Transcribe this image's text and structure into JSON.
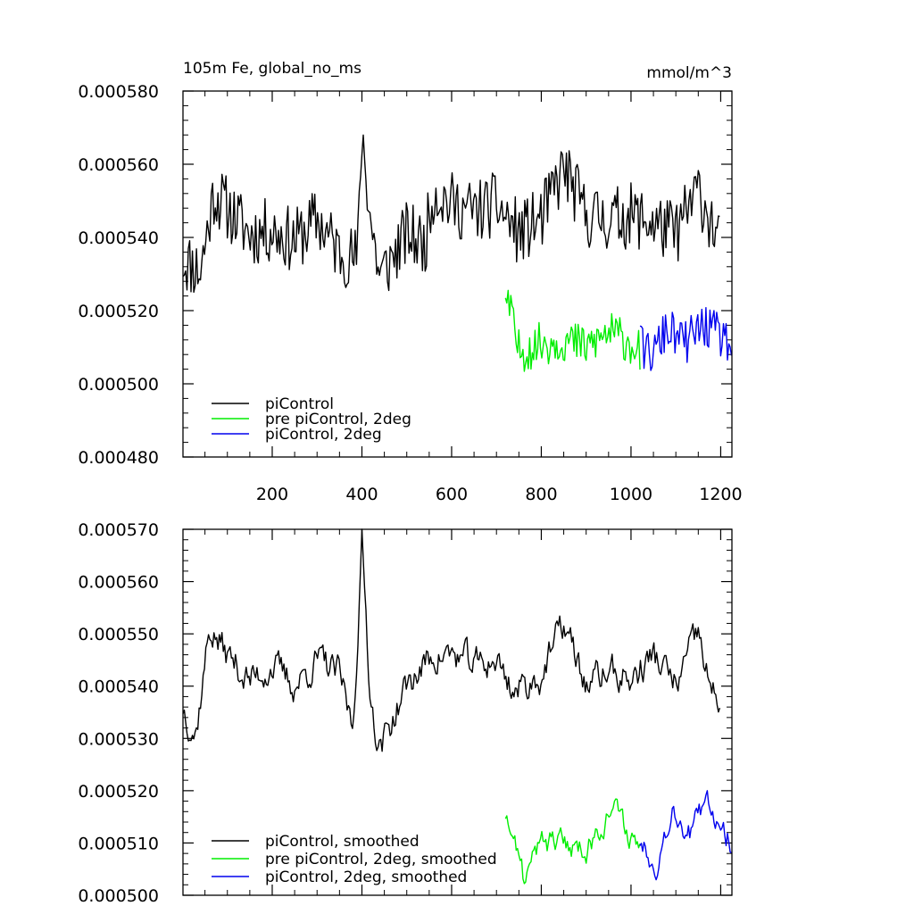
{
  "chart_data": [
    {
      "type": "line",
      "title": "105m Fe, global_no_ms",
      "units": "mmol/m^3",
      "xlabel": "",
      "ylabel": "",
      "xlim": [
        1,
        1225
      ],
      "ylim": [
        0.00048,
        0.00058
      ],
      "xticks": [
        200,
        400,
        600,
        800,
        1000,
        1200
      ],
      "xtick_labels": [
        "200",
        "400",
        "600",
        "800",
        "1000",
        "1200"
      ],
      "yticks": [
        0.00048,
        0.0005,
        0.00052,
        0.00054,
        0.00056,
        0.00058
      ],
      "ytick_labels": [
        "0.000480",
        "0.000500",
        "0.000520",
        "0.000540",
        "0.000560",
        "0.000580"
      ],
      "legend": {
        "position": "bottom-left"
      },
      "series": [
        {
          "name": "piControl",
          "color": "#000000",
          "x_range": [
            1,
            1200
          ],
          "points": [
            [
              1,
              0.000534
            ],
            [
              40,
              0.000531
            ],
            [
              70,
              0.000552
            ],
            [
              100,
              0.000548
            ],
            [
              150,
              0.000541
            ],
            [
              200,
              0.000542
            ],
            [
              250,
              0.000539
            ],
            [
              300,
              0.000545
            ],
            [
              350,
              0.000536
            ],
            [
              390,
              0.000534
            ],
            [
              400,
              0.000569
            ],
            [
              420,
              0.000544
            ],
            [
              440,
              0.000529
            ],
            [
              500,
              0.000541
            ],
            [
              540,
              0.000538
            ],
            [
              560,
              0.000553
            ],
            [
              600,
              0.000549
            ],
            [
              650,
              0.000547
            ],
            [
              700,
              0.000549
            ],
            [
              750,
              0.000541
            ],
            [
              800,
              0.000545
            ],
            [
              850,
              0.000559
            ],
            [
              900,
              0.000546
            ],
            [
              950,
              0.000545
            ],
            [
              1000,
              0.000546
            ],
            [
              1050,
              0.000544
            ],
            [
              1100,
              0.000541
            ],
            [
              1150,
              0.000553
            ],
            [
              1180,
              0.000544
            ],
            [
              1200,
              0.000537
            ]
          ],
          "noise": 9e-06
        },
        {
          "name": "pre piControl, 2deg",
          "color": "#00ee00",
          "x_range": [
            720,
            1020
          ],
          "points": [
            [
              720,
              0.000525
            ],
            [
              750,
              0.000509
            ],
            [
              780,
              0.00051
            ],
            [
              800,
              0.000511
            ],
            [
              850,
              0.000512
            ],
            [
              900,
              0.00051
            ],
            [
              950,
              0.000514
            ],
            [
              990,
              0.000512
            ],
            [
              1020,
              0.000509
            ]
          ],
          "noise": 6e-06
        },
        {
          "name": "piControl, 2deg",
          "color": "#0000ee",
          "x_range": [
            1020,
            1225
          ],
          "points": [
            [
              1020,
              0.00051
            ],
            [
              1050,
              0.000508
            ],
            [
              1080,
              0.000515
            ],
            [
              1120,
              0.000511
            ],
            [
              1160,
              0.000516
            ],
            [
              1200,
              0.000513
            ],
            [
              1225,
              0.00051
            ]
          ],
          "noise": 6e-06
        }
      ]
    },
    {
      "type": "line",
      "title": "",
      "xlabel": "",
      "ylabel": "",
      "xlim": [
        1,
        1225
      ],
      "ylim": [
        0.0005,
        0.00057
      ],
      "xticks": [
        200,
        400,
        600,
        800,
        1000,
        1200
      ],
      "xtick_labels": [],
      "yticks": [
        0.0005,
        0.00051,
        0.00052,
        0.00053,
        0.00054,
        0.00055,
        0.00056,
        0.00057
      ],
      "ytick_labels": [
        "0.000500",
        "0.000510",
        "0.000520",
        "0.000530",
        "0.000540",
        "0.000550",
        "0.000560",
        "0.000570"
      ],
      "legend": {
        "position": "bottom-left"
      },
      "series": [
        {
          "name": "piControl, smoothed",
          "color": "#000000",
          "x_range": [
            1,
            1200
          ],
          "points": [
            [
              1,
              0.000536
            ],
            [
              30,
              0.000531
            ],
            [
              60,
              0.000551
            ],
            [
              100,
              0.000546
            ],
            [
              150,
              0.000541
            ],
            [
              200,
              0.000544
            ],
            [
              250,
              0.00054
            ],
            [
              300,
              0.000545
            ],
            [
              350,
              0.000542
            ],
            [
              380,
              0.000532
            ],
            [
              400,
              0.000567
            ],
            [
              420,
              0.000537
            ],
            [
              440,
              0.000528
            ],
            [
              500,
              0.00054
            ],
            [
              560,
              0.000546
            ],
            [
              600,
              0.000546
            ],
            [
              650,
              0.000544
            ],
            [
              700,
              0.000545
            ],
            [
              740,
              0.000539
            ],
            [
              800,
              0.000542
            ],
            [
              850,
              0.000552
            ],
            [
              900,
              0.00054
            ],
            [
              950,
              0.000543
            ],
            [
              1000,
              0.000541
            ],
            [
              1050,
              0.000546
            ],
            [
              1100,
              0.00054
            ],
            [
              1150,
              0.00055
            ],
            [
              1180,
              0.000538
            ],
            [
              1200,
              0.000537
            ]
          ],
          "noise": 4e-06
        },
        {
          "name": "pre piControl, 2deg, smoothed",
          "color": "#00ee00",
          "x_range": [
            720,
            1020
          ],
          "points": [
            [
              720,
              0.000516
            ],
            [
              760,
              0.000503
            ],
            [
              800,
              0.00051
            ],
            [
              850,
              0.00051
            ],
            [
              900,
              0.000509
            ],
            [
              960,
              0.000517
            ],
            [
              1000,
              0.000511
            ],
            [
              1020,
              0.00051
            ]
          ],
          "noise": 3e-06
        },
        {
          "name": "piControl, 2deg, smoothed",
          "color": "#0000ee",
          "x_range": [
            1020,
            1225
          ],
          "points": [
            [
              1020,
              0.00051
            ],
            [
              1060,
              0.000506
            ],
            [
              1090,
              0.000517
            ],
            [
              1130,
              0.000512
            ],
            [
              1170,
              0.000517
            ],
            [
              1200,
              0.000514
            ],
            [
              1225,
              0.00051
            ]
          ],
          "noise": 3e-06
        }
      ]
    }
  ]
}
